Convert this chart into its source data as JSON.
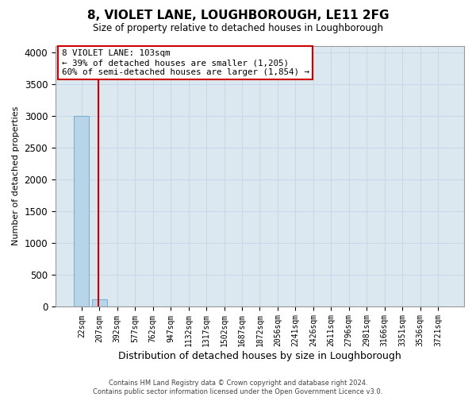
{
  "title": "8, VIOLET LANE, LOUGHBOROUGH, LE11 2FG",
  "subtitle": "Size of property relative to detached houses in Loughborough",
  "xlabel": "Distribution of detached houses by size in Loughborough",
  "ylabel": "Number of detached properties",
  "categories": [
    "22sqm",
    "207sqm",
    "392sqm",
    "577sqm",
    "762sqm",
    "947sqm",
    "1132sqm",
    "1317sqm",
    "1502sqm",
    "1687sqm",
    "1872sqm",
    "2056sqm",
    "2241sqm",
    "2426sqm",
    "2611sqm",
    "2796sqm",
    "2981sqm",
    "3166sqm",
    "3351sqm",
    "3536sqm",
    "3721sqm"
  ],
  "values": [
    3000,
    105,
    0,
    0,
    0,
    0,
    0,
    0,
    0,
    0,
    0,
    0,
    0,
    0,
    0,
    0,
    0,
    0,
    0,
    0,
    0
  ],
  "bar_color": "#b8d4e8",
  "bar_edge_color": "#7bafd4",
  "ylim": [
    0,
    4100
  ],
  "yticks": [
    0,
    500,
    1000,
    1500,
    2000,
    2500,
    3000,
    3500,
    4000
  ],
  "grid_color": "#c8d8e8",
  "background_color": "#dce8f0",
  "annotation_line1": "8 VIOLET LANE: 103sqm",
  "annotation_line2": "← 39% of detached houses are smaller (1,205)",
  "annotation_line3": "60% of semi-detached houses are larger (1,854) →",
  "annotation_box_color": "#ffffff",
  "annotation_box_edge": "#cc0000",
  "red_line_x": 0.95,
  "footer_line1": "Contains HM Land Registry data © Crown copyright and database right 2024.",
  "footer_line2": "Contains public sector information licensed under the Open Government Licence v3.0."
}
